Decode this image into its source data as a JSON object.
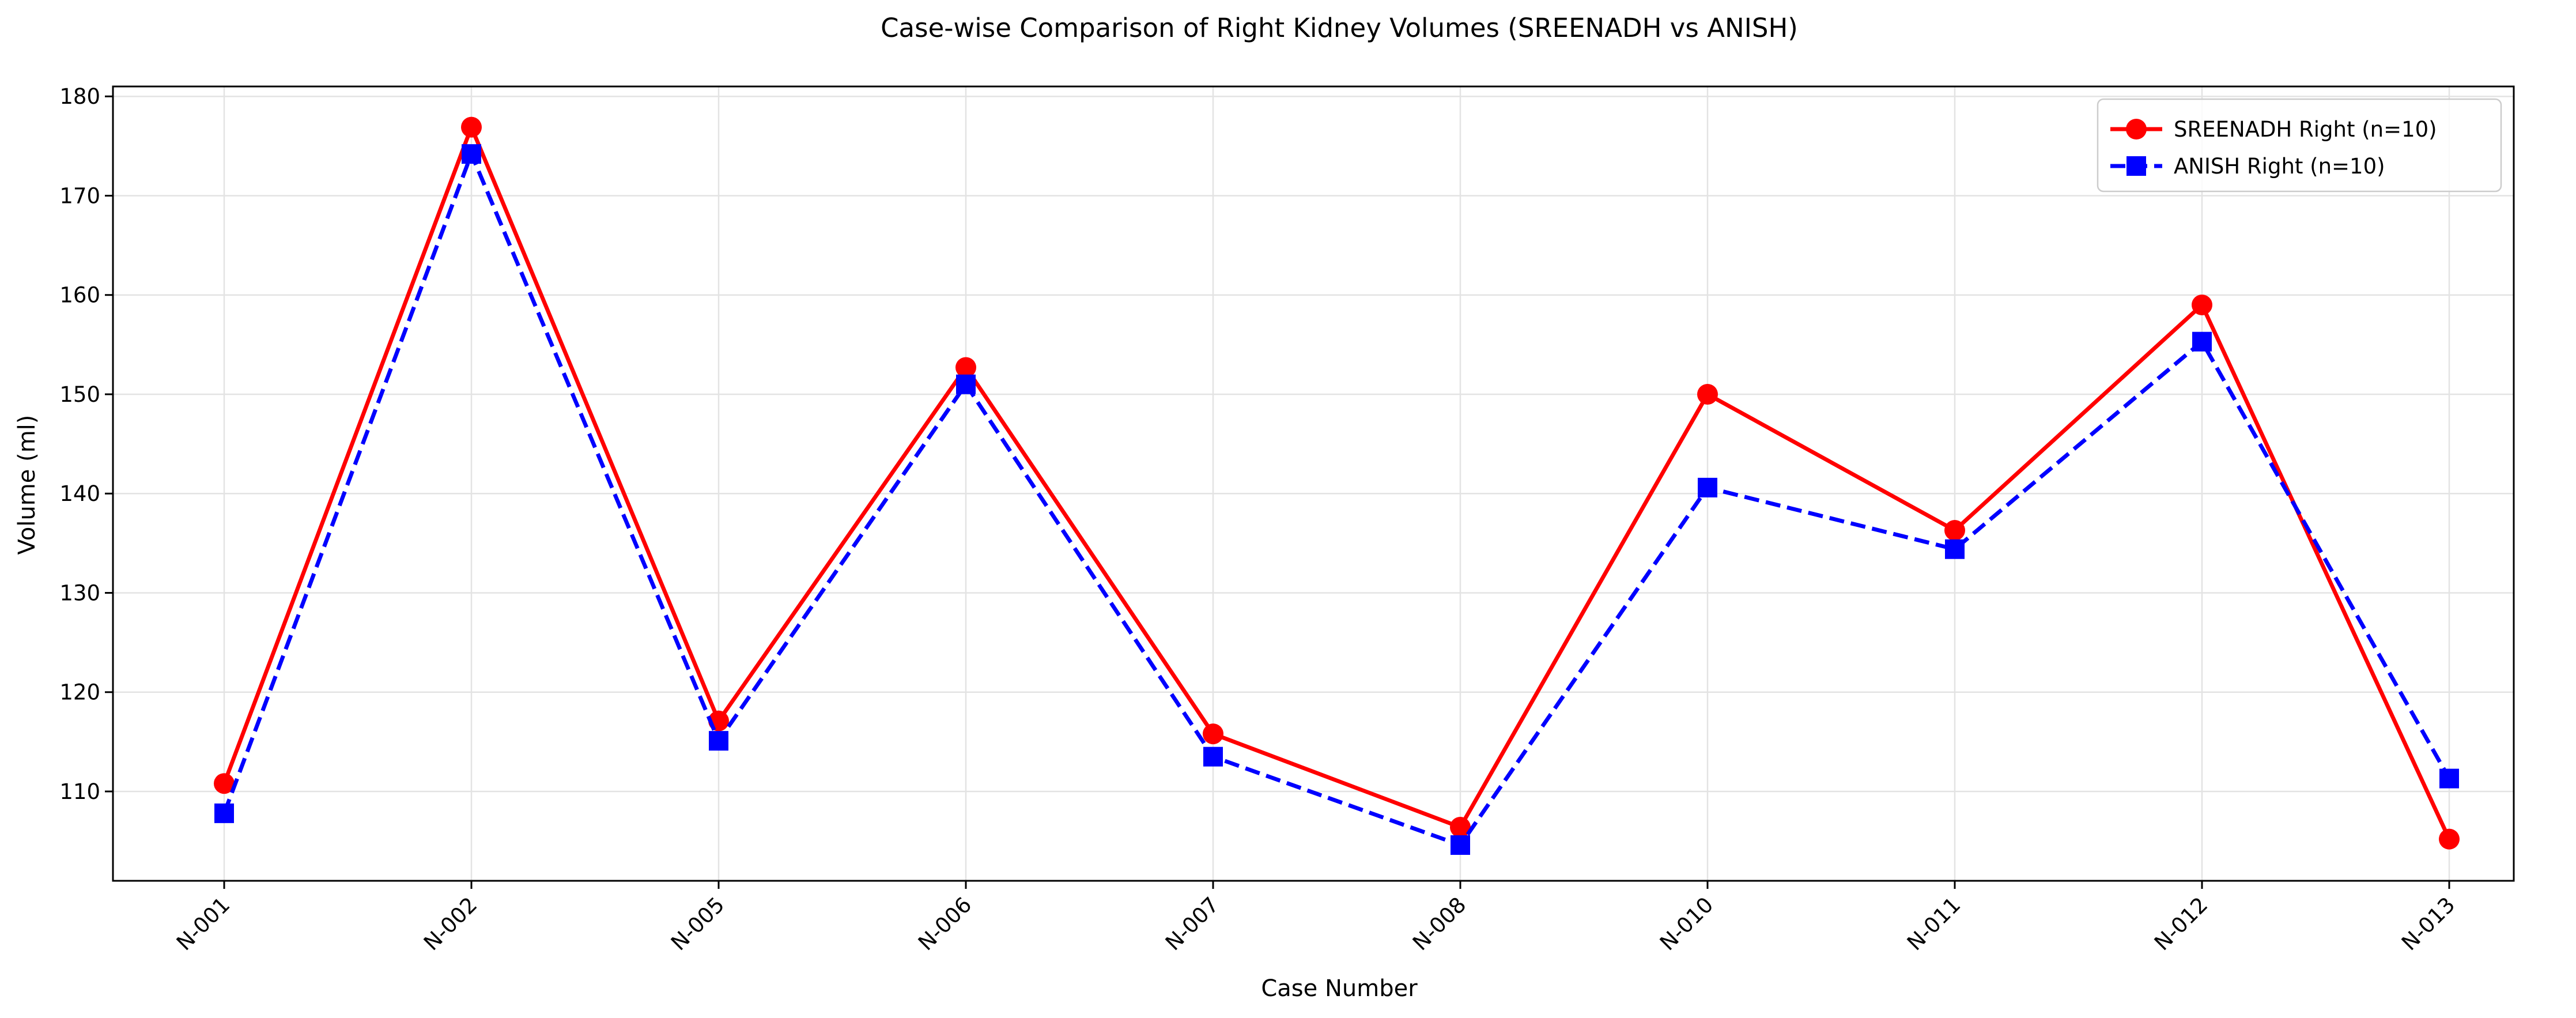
{
  "chart_data": {
    "type": "line",
    "title": "Case-wise Comparison of Right Kidney Volumes (SREENADH vs ANISH)",
    "xlabel": "Case Number",
    "ylabel": "Volume (ml)",
    "categories": [
      "N-001",
      "N-002",
      "N-005",
      "N-006",
      "N-007",
      "N-008",
      "N-010",
      "N-011",
      "N-012",
      "N-013"
    ],
    "ylim": [
      101,
      181
    ],
    "yticks": [
      110,
      120,
      130,
      140,
      150,
      160,
      170,
      180
    ],
    "grid": true,
    "legend_position": "top-right",
    "series": [
      {
        "name": "SREENADH Right (n=10)",
        "color": "#ff0000",
        "line_style": "solid",
        "marker": "circle",
        "values": [
          110.8,
          176.9,
          117.1,
          152.7,
          115.8,
          106.4,
          150.0,
          136.3,
          159.0,
          105.2
        ]
      },
      {
        "name": "ANISH Right (n=10)",
        "color": "#0000ff",
        "line_style": "dashed",
        "marker": "square",
        "values": [
          107.8,
          174.2,
          115.1,
          151.0,
          113.5,
          104.6,
          140.6,
          134.4,
          155.3,
          111.3
        ]
      }
    ]
  }
}
